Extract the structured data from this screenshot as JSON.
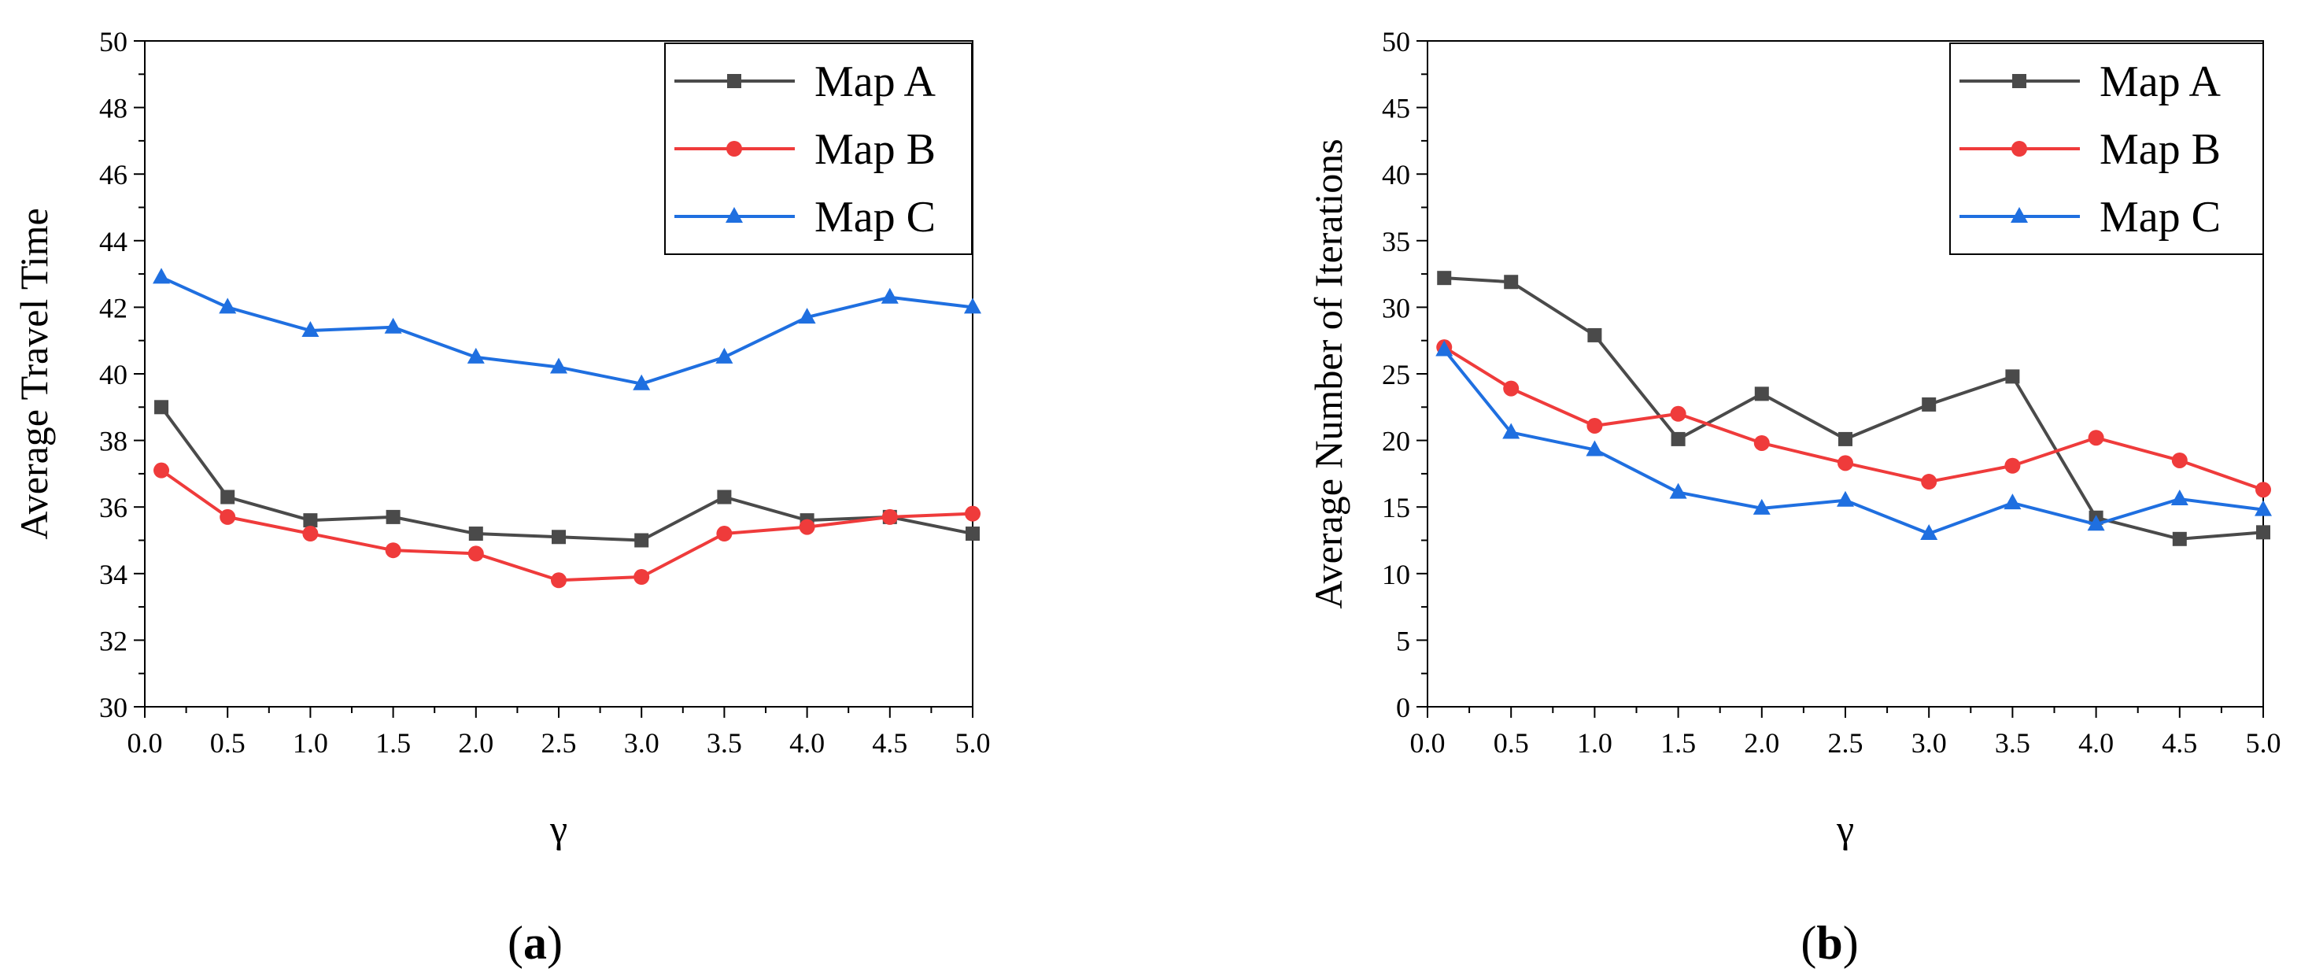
{
  "chart_data": [
    {
      "type": "line",
      "panel_label": "a",
      "xlabel": "γ",
      "ylabel": "Average Travel Time",
      "xlim": [
        0.0,
        5.0
      ],
      "ylim": [
        30,
        50
      ],
      "x_ticks": [
        "0.0",
        "0.5",
        "1.0",
        "1.5",
        "2.0",
        "2.5",
        "3.0",
        "3.5",
        "4.0",
        "4.5",
        "5.0"
      ],
      "y_ticks": [
        "30",
        "32",
        "34",
        "36",
        "38",
        "40",
        "42",
        "44",
        "46",
        "48",
        "50"
      ],
      "y_tick_values": [
        30,
        32,
        34,
        36,
        38,
        40,
        42,
        44,
        46,
        48,
        50
      ],
      "x": [
        0.1,
        0.5,
        1.0,
        1.5,
        2.0,
        2.5,
        3.0,
        3.5,
        4.0,
        4.5,
        5.0
      ],
      "series": [
        {
          "name": "Map A",
          "color": "#4a4a4a",
          "marker": "square",
          "values": [
            39.0,
            36.3,
            35.6,
            35.7,
            35.2,
            35.1,
            35.0,
            36.3,
            35.6,
            35.7,
            35.2
          ]
        },
        {
          "name": "Map B",
          "color": "#ef3b3b",
          "marker": "circle",
          "values": [
            37.1,
            35.7,
            35.2,
            34.7,
            34.6,
            33.8,
            33.9,
            35.2,
            35.4,
            35.7,
            35.8
          ]
        },
        {
          "name": "Map C",
          "color": "#1f6fe0",
          "marker": "triangle",
          "values": [
            42.9,
            42.0,
            41.3,
            41.4,
            40.5,
            40.2,
            39.7,
            40.5,
            41.7,
            42.3,
            42.0
          ]
        }
      ],
      "legend_position": "top-right",
      "grid": false
    },
    {
      "type": "line",
      "panel_label": "b",
      "xlabel": "γ",
      "ylabel": "Average Number of Iterations",
      "xlim": [
        0.0,
        5.0
      ],
      "ylim": [
        0,
        50
      ],
      "x_ticks": [
        "0.0",
        "0.5",
        "1.0",
        "1.5",
        "2.0",
        "2.5",
        "3.0",
        "3.5",
        "4.0",
        "4.5",
        "5.0"
      ],
      "y_ticks": [
        "0",
        "5",
        "10",
        "15",
        "20",
        "25",
        "30",
        "35",
        "40",
        "45",
        "50"
      ],
      "y_tick_values": [
        0,
        5,
        10,
        15,
        20,
        25,
        30,
        35,
        40,
        45,
        50
      ],
      "x": [
        0.1,
        0.5,
        1.0,
        1.5,
        2.0,
        2.5,
        3.0,
        3.5,
        4.0,
        4.5,
        5.0
      ],
      "series": [
        {
          "name": "Map A",
          "color": "#4a4a4a",
          "marker": "square",
          "values": [
            32.2,
            31.9,
            27.9,
            20.1,
            23.5,
            20.1,
            22.7,
            24.8,
            14.2,
            12.6,
            13.1
          ]
        },
        {
          "name": "Map B",
          "color": "#ef3b3b",
          "marker": "circle",
          "values": [
            27.0,
            23.9,
            21.1,
            22.0,
            19.8,
            18.3,
            16.9,
            18.1,
            20.2,
            18.5,
            16.3
          ]
        },
        {
          "name": "Map C",
          "color": "#1f6fe0",
          "marker": "triangle",
          "values": [
            26.8,
            20.6,
            19.3,
            16.1,
            14.9,
            15.5,
            13.0,
            15.3,
            13.7,
            15.6,
            14.8
          ]
        }
      ],
      "legend_position": "top-right",
      "grid": false
    }
  ]
}
